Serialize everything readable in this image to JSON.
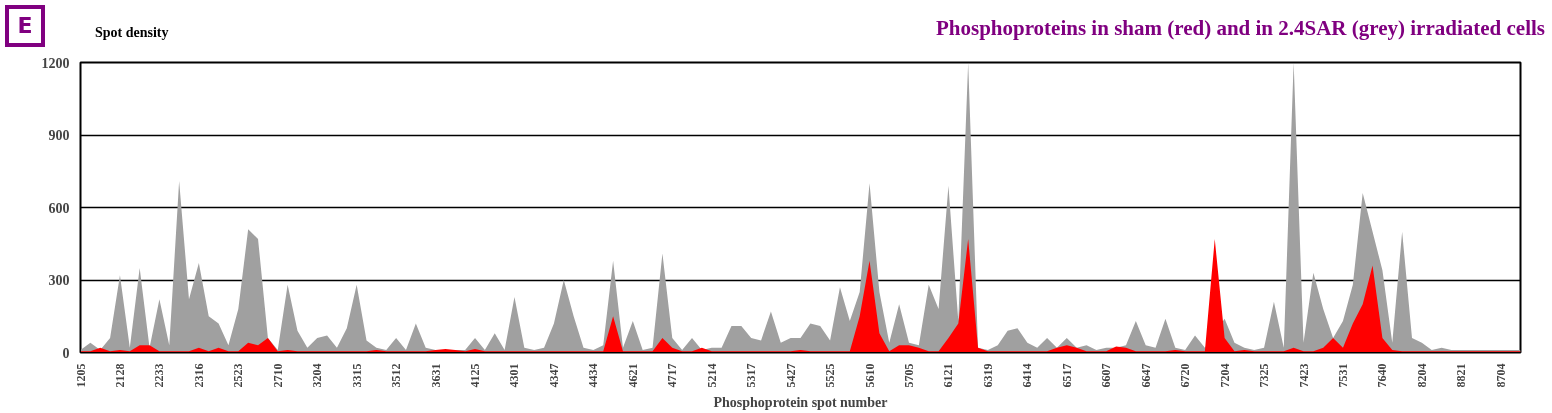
{
  "chart_data": {
    "type": "area",
    "title": "Phosphoproteins in sham (red) and in 2.4SAR (grey) irradiated cells",
    "xlabel": "Phosphoprotein spot number",
    "ylabel": "Spot density",
    "annotations": [
      "E"
    ],
    "categories": [
      "1205",
      null,
      null,
      null,
      "2128",
      null,
      null,
      null,
      "2233",
      null,
      null,
      null,
      "2316",
      null,
      null,
      null,
      "2523",
      null,
      null,
      null,
      "2710",
      null,
      null,
      null,
      "3204",
      null,
      null,
      null,
      "3315",
      null,
      null,
      null,
      "3512",
      null,
      null,
      null,
      "3631",
      null,
      null,
      null,
      "4125",
      null,
      null,
      null,
      "4301",
      null,
      null,
      null,
      "4347",
      null,
      null,
      null,
      "4434",
      null,
      null,
      null,
      "4621",
      null,
      null,
      null,
      "4717",
      null,
      null,
      null,
      "5214",
      null,
      null,
      null,
      "5317",
      null,
      null,
      null,
      "5427",
      null,
      null,
      null,
      "5525",
      null,
      null,
      null,
      "5610",
      null,
      null,
      null,
      "5705",
      null,
      null,
      null,
      "6121",
      null,
      null,
      null,
      "6319",
      null,
      null,
      null,
      "6414",
      null,
      null,
      null,
      "6517",
      null,
      null,
      null,
      "6607",
      null,
      null,
      null,
      "6647",
      null,
      null,
      null,
      "6720",
      null,
      null,
      null,
      "7204",
      null,
      null,
      null,
      "7325",
      null,
      null,
      null,
      "7423",
      null,
      null,
      null,
      "7531",
      null,
      null,
      null,
      "7640",
      null,
      null,
      null,
      "8204",
      null,
      null,
      null,
      "8821",
      null,
      null,
      null,
      "8704",
      null,
      null
    ],
    "series": [
      {
        "color": "#a0a0a0",
        "values": [
          10,
          40,
          10,
          60,
          320,
          20,
          350,
          20,
          220,
          30,
          710,
          220,
          370,
          150,
          120,
          30,
          180,
          510,
          470,
          60,
          10,
          280,
          90,
          20,
          60,
          70,
          20,
          100,
          280,
          50,
          20,
          10,
          60,
          10,
          120,
          20,
          10,
          10,
          10,
          10,
          60,
          10,
          80,
          10,
          230,
          20,
          10,
          20,
          120,
          300,
          150,
          20,
          10,
          30,
          380,
          20,
          130,
          10,
          20,
          410,
          60,
          10,
          60,
          10,
          20,
          20,
          110,
          110,
          60,
          50,
          170,
          40,
          60,
          60,
          120,
          110,
          50,
          270,
          130,
          250,
          700,
          250,
          40,
          200,
          40,
          30,
          280,
          180,
          690,
          130,
          1200,
          20,
          10,
          30,
          90,
          100,
          40,
          20,
          60,
          20,
          60,
          20,
          30,
          10,
          20,
          20,
          30,
          130,
          30,
          20,
          140,
          20,
          10,
          70,
          20,
          null,
          140,
          40,
          20,
          10,
          20,
          210,
          20,
          1200,
          40,
          330,
          180,
          60,
          130,
          280,
          660,
          null,
          340,
          40,
          500,
          60,
          40,
          10,
          20,
          10,
          10,
          10,
          10,
          10,
          10,
          10,
          10
        ]
      },
      {
        "color": "#ff0000",
        "values": [
          5,
          5,
          20,
          5,
          10,
          5,
          30,
          30,
          5,
          5,
          5,
          5,
          20,
          5,
          20,
          5,
          5,
          40,
          30,
          60,
          5,
          10,
          5,
          5,
          5,
          5,
          5,
          5,
          5,
          5,
          10,
          5,
          5,
          5,
          5,
          5,
          10,
          15,
          10,
          5,
          15,
          5,
          5,
          5,
          5,
          5,
          5,
          5,
          5,
          5,
          5,
          5,
          5,
          5,
          150,
          5,
          5,
          5,
          5,
          60,
          20,
          5,
          5,
          20,
          5,
          5,
          5,
          5,
          5,
          5,
          5,
          5,
          5,
          10,
          5,
          5,
          5,
          5,
          5,
          150,
          380,
          80,
          5,
          30,
          30,
          20,
          5,
          5,
          60,
          120,
          470,
          20,
          5,
          5,
          5,
          5,
          5,
          5,
          5,
          20,
          30,
          20,
          5,
          5,
          5,
          25,
          20,
          5,
          5,
          5,
          5,
          10,
          5,
          5,
          5,
          470,
          60,
          5,
          10,
          5,
          5,
          5,
          5,
          20,
          5,
          5,
          20,
          60,
          20,
          120,
          200,
          360,
          60,
          10,
          5,
          5,
          5,
          5,
          5,
          5,
          5,
          5,
          5,
          5,
          5,
          5,
          5
        ]
      }
    ],
    "ylim": [
      0,
      1200
    ],
    "yticks": [
      0,
      300,
      600,
      900,
      1200
    ],
    "grid": "y"
  }
}
